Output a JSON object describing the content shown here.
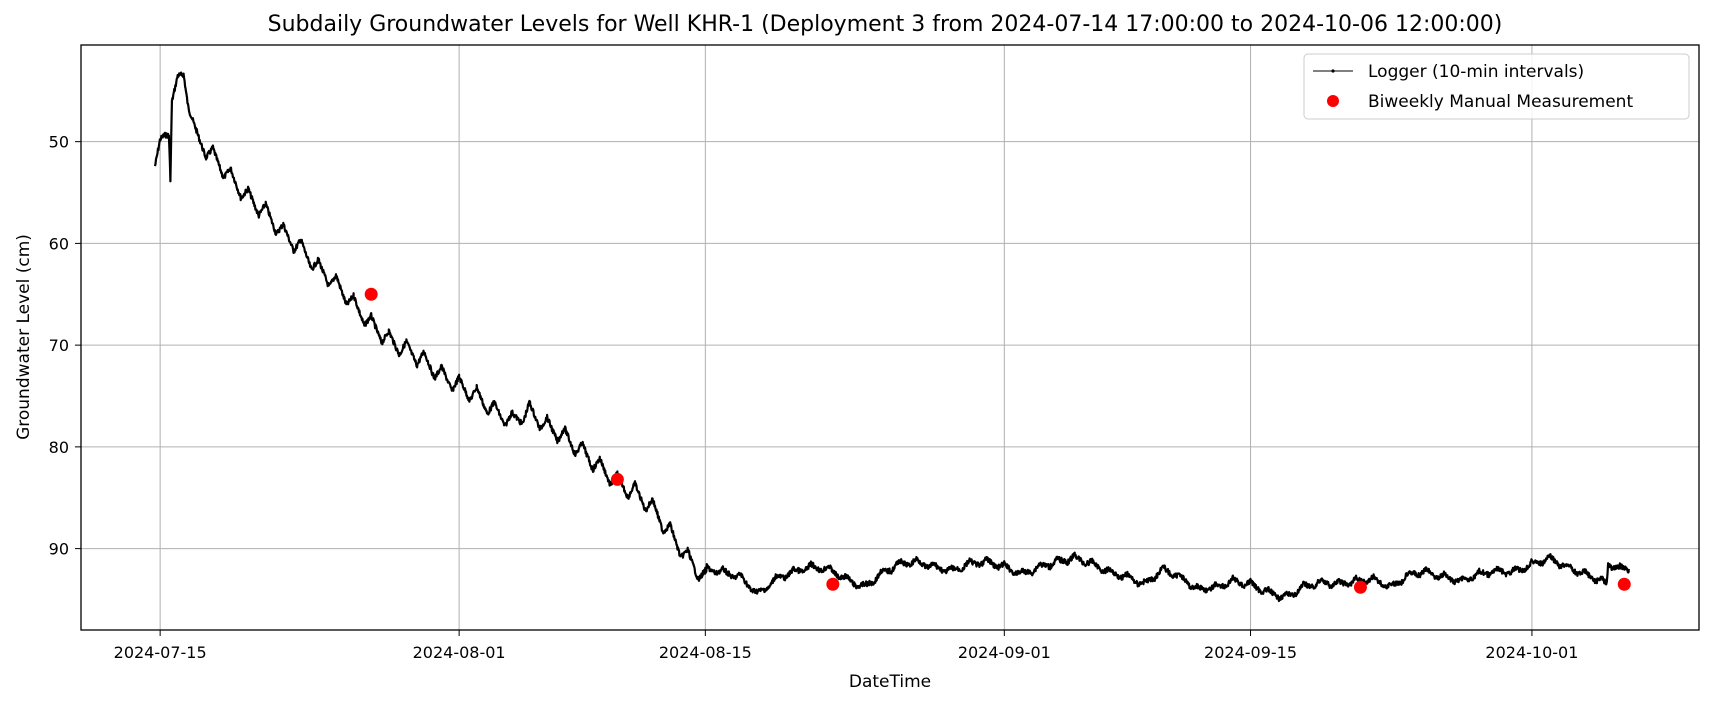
{
  "chart_data": {
    "type": "line",
    "title": "Subdaily Groundwater Levels for Well KHR-1 (Deployment 3 from 2024-07-14 17:00:00 to 2024-10-06 12:00:00)",
    "xlabel": "DateTime",
    "ylabel": "Groundwater Level (cm)",
    "x_type": "date",
    "xlim": [
      "2024-07-10T12:00",
      "2024-10-10T12:00"
    ],
    "ylim": [
      98,
      40.5
    ],
    "y_inverted": true,
    "grid": true,
    "legend_position": "top-right",
    "x_ticks": [
      "2024-07-15",
      "2024-08-01",
      "2024-08-15",
      "2024-09-01",
      "2024-09-15",
      "2024-10-01"
    ],
    "y_ticks": [
      50,
      60,
      70,
      80,
      90
    ],
    "series": [
      {
        "name": "Logger (10-min intervals)",
        "kind": "line",
        "color": "#000000",
        "interval": "10-min",
        "diurnal_amplitude_cm": 1.8,
        "points": [
          [
            "2024-07-14T17:00",
            52.0
          ],
          [
            "2024-07-15T06:00",
            49.5
          ],
          [
            "2024-07-15T12:00",
            48.8
          ],
          [
            "2024-07-15T14:00",
            52.8
          ],
          [
            "2024-07-15T16:00",
            45.5
          ],
          [
            "2024-07-16T08:00",
            43.3
          ],
          [
            "2024-07-17T00:00",
            49.5
          ],
          [
            "2024-07-18T00:00",
            51.5
          ],
          [
            "2024-07-19T00:00",
            53.5
          ],
          [
            "2024-07-20T00:00",
            55.5
          ],
          [
            "2024-07-21T00:00",
            57.0
          ],
          [
            "2024-07-22T00:00",
            59.0
          ],
          [
            "2024-07-23T00:00",
            60.5
          ],
          [
            "2024-07-24T00:00",
            62.5
          ],
          [
            "2024-07-25T00:00",
            64.0
          ],
          [
            "2024-07-26T00:00",
            66.0
          ],
          [
            "2024-07-27T00:00",
            68.0
          ],
          [
            "2024-07-28T00:00",
            69.5
          ],
          [
            "2024-07-29T00:00",
            70.5
          ],
          [
            "2024-07-30T00:00",
            71.5
          ],
          [
            "2024-07-31T00:00",
            73.0
          ],
          [
            "2024-08-01T00:00",
            74.0
          ],
          [
            "2024-08-02T00:00",
            75.0
          ],
          [
            "2024-08-03T00:00",
            76.5
          ],
          [
            "2024-08-04T00:00",
            77.5
          ],
          [
            "2024-08-05T00:00",
            76.5
          ],
          [
            "2024-08-06T00:00",
            78.0
          ],
          [
            "2024-08-07T00:00",
            79.0
          ],
          [
            "2024-08-08T00:00",
            80.5
          ],
          [
            "2024-08-09T00:00",
            82.0
          ],
          [
            "2024-08-10T00:00",
            83.5
          ],
          [
            "2024-08-11T00:00",
            84.5
          ],
          [
            "2024-08-12T00:00",
            86.0
          ],
          [
            "2024-08-13T00:00",
            88.5
          ],
          [
            "2024-08-14T00:00",
            91.0
          ],
          [
            "2024-08-15T00:00",
            93.0
          ],
          [
            "2024-08-15T02:00",
            92.0
          ],
          [
            "2024-08-16T00:00",
            92.3
          ],
          [
            "2024-08-17T00:00",
            92.8
          ],
          [
            "2024-08-18T00:00",
            94.5
          ],
          [
            "2024-08-19T00:00",
            93.0
          ],
          [
            "2024-08-20T00:00",
            92.3
          ],
          [
            "2024-08-21T00:00",
            91.8
          ],
          [
            "2024-08-22T00:00",
            92.0
          ],
          [
            "2024-08-23T00:00",
            93.0
          ],
          [
            "2024-08-24T00:00",
            93.8
          ],
          [
            "2024-08-25T00:00",
            92.5
          ],
          [
            "2024-08-26T00:00",
            91.5
          ],
          [
            "2024-08-27T00:00",
            91.3
          ],
          [
            "2024-08-28T00:00",
            91.8
          ],
          [
            "2024-08-29T00:00",
            92.2
          ],
          [
            "2024-08-30T00:00",
            91.5
          ],
          [
            "2024-08-31T00:00",
            91.3
          ],
          [
            "2024-09-01T00:00",
            91.8
          ],
          [
            "2024-09-02T00:00",
            92.5
          ],
          [
            "2024-09-03T00:00",
            91.8
          ],
          [
            "2024-09-04T00:00",
            91.3
          ],
          [
            "2024-09-05T00:00",
            90.9
          ],
          [
            "2024-09-06T00:00",
            91.5
          ],
          [
            "2024-09-07T00:00",
            92.3
          ],
          [
            "2024-09-08T00:00",
            92.8
          ],
          [
            "2024-09-09T00:00",
            93.5
          ],
          [
            "2024-09-10T00:00",
            92.0
          ],
          [
            "2024-09-11T00:00",
            92.8
          ],
          [
            "2024-09-12T00:00",
            94.0
          ],
          [
            "2024-09-13T00:00",
            93.8
          ],
          [
            "2024-09-14T00:00",
            93.2
          ],
          [
            "2024-09-15T00:00",
            93.5
          ],
          [
            "2024-09-16T00:00",
            94.3
          ],
          [
            "2024-09-17T00:00",
            94.8
          ],
          [
            "2024-09-18T00:00",
            93.8
          ],
          [
            "2024-09-19T00:00",
            93.3
          ],
          [
            "2024-09-20T00:00",
            93.5
          ],
          [
            "2024-09-21T00:00",
            93.2
          ],
          [
            "2024-09-22T00:00",
            93.0
          ],
          [
            "2024-09-23T00:00",
            93.8
          ],
          [
            "2024-09-24T00:00",
            92.5
          ],
          [
            "2024-09-25T00:00",
            92.3
          ],
          [
            "2024-09-26T00:00",
            92.8
          ],
          [
            "2024-09-27T00:00",
            93.2
          ],
          [
            "2024-09-28T00:00",
            92.5
          ],
          [
            "2024-09-29T00:00",
            92.2
          ],
          [
            "2024-09-30T00:00",
            92.3
          ],
          [
            "2024-10-01T00:00",
            91.5
          ],
          [
            "2024-10-02T00:00",
            91.0
          ],
          [
            "2024-10-03T00:00",
            91.8
          ],
          [
            "2024-10-04T00:00",
            92.5
          ],
          [
            "2024-10-05T00:00",
            93.2
          ],
          [
            "2024-10-05T06:00",
            93.6
          ],
          [
            "2024-10-05T08:00",
            91.5
          ],
          [
            "2024-10-06T00:00",
            92.0
          ],
          [
            "2024-10-06T12:00",
            92.0
          ]
        ]
      },
      {
        "name": "Biweekly Manual Measurement",
        "kind": "scatter",
        "color": "#ff0000",
        "points": [
          [
            "2024-07-27T00:00",
            65.0
          ],
          [
            "2024-08-10T00:00",
            83.2
          ],
          [
            "2024-08-22T06:00",
            93.5
          ],
          [
            "2024-09-21T06:00",
            93.8
          ],
          [
            "2024-10-06T06:00",
            93.5
          ]
        ]
      }
    ]
  }
}
